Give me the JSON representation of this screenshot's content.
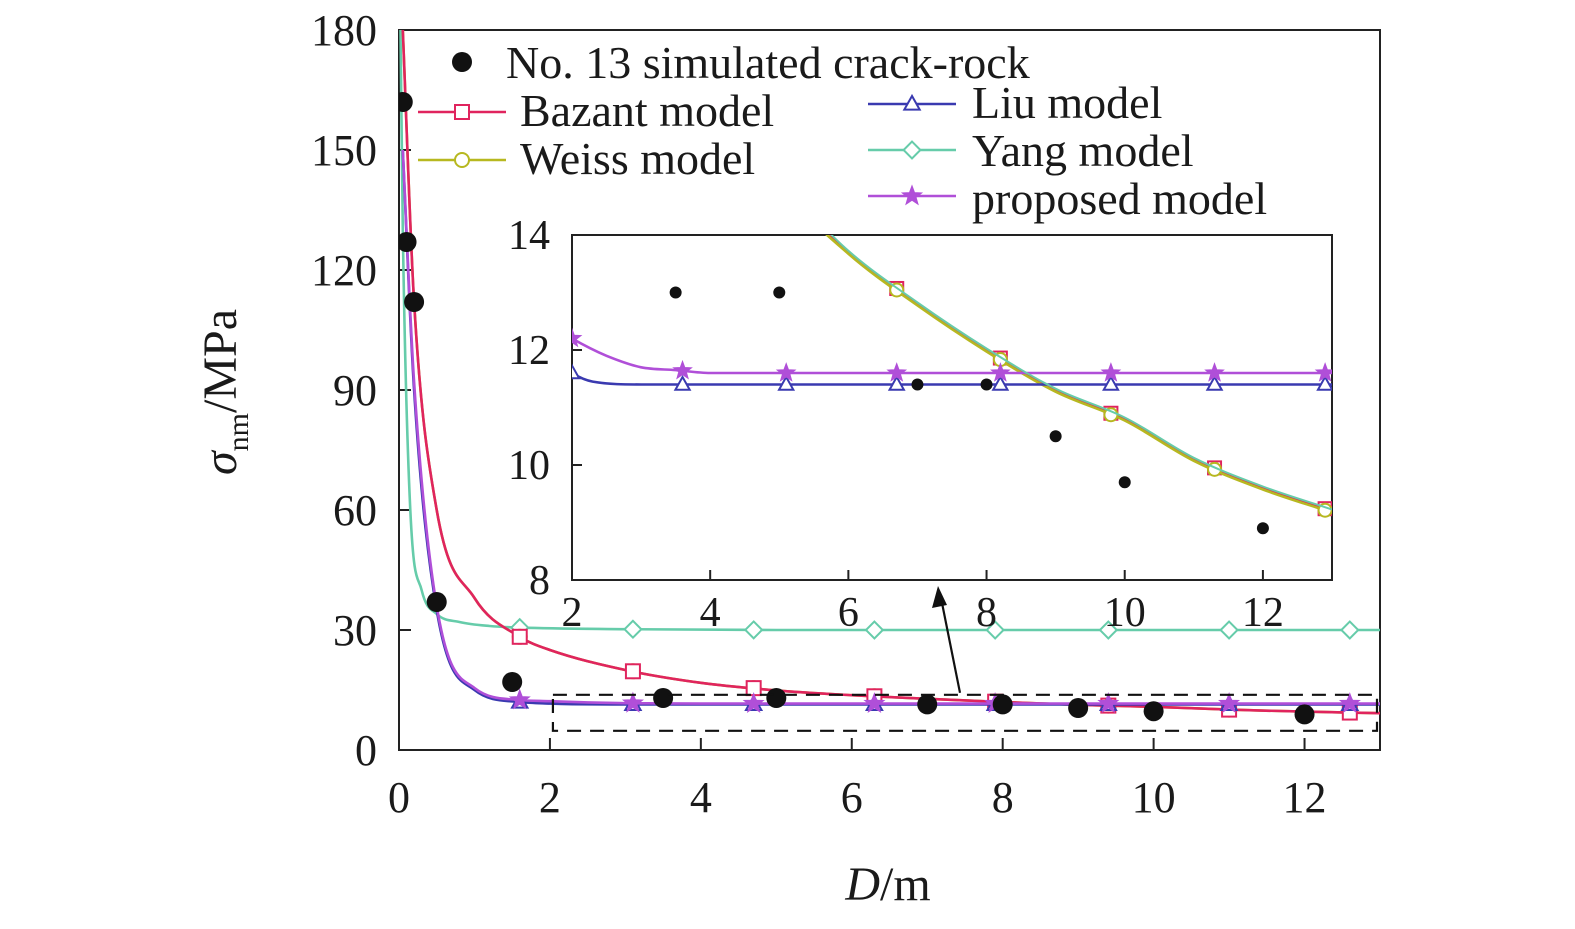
{
  "chart_data": {
    "type": "line",
    "title": "",
    "xlabel": {
      "italic": "D",
      "rest": "/m"
    },
    "ylabel": {
      "symbol": "σ",
      "subscript": "nm",
      "rest": "/MPa"
    },
    "xlim": [
      0,
      13
    ],
    "ylim": [
      0,
      180
    ],
    "x_ticks": [
      "0",
      "2",
      "4",
      "6",
      "8",
      "10",
      "12"
    ],
    "y_ticks": [
      "0",
      "30",
      "60",
      "90",
      "120",
      "150",
      "180"
    ],
    "legend": [
      {
        "label": "No. 13 simulated crack-rock",
        "marker": "dot",
        "color": "#111111"
      },
      {
        "label": "Bazant model",
        "marker": "square",
        "color": "#e0245e"
      },
      {
        "label": "Weiss model",
        "marker": "circle",
        "color": "#b7b820"
      },
      {
        "label": "Liu model",
        "marker": "triangle",
        "color": "#3a3ab0"
      },
      {
        "label": "Yang model",
        "marker": "diamond",
        "color": "#66ccaa"
      },
      {
        "label": "proposed model",
        "marker": "star",
        "color": "#b04fd8"
      }
    ],
    "scatter_points": [
      [
        0.05,
        162
      ],
      [
        0.1,
        127
      ],
      [
        0.2,
        112
      ],
      [
        0.5,
        37
      ],
      [
        1.5,
        17
      ],
      [
        3.5,
        13
      ],
      [
        5,
        13
      ],
      [
        7,
        11.4
      ],
      [
        8,
        11.4
      ],
      [
        9,
        10.5
      ],
      [
        10,
        9.7
      ],
      [
        12,
        8.9
      ]
    ],
    "series": [
      {
        "name": "Bazant model",
        "color": "#e0245e",
        "marker": "square",
        "x": [
          0.05,
          0.2,
          0.5,
          1,
          1.6,
          2,
          3,
          4,
          5,
          6,
          7,
          8,
          9,
          10,
          11,
          12,
          13
        ],
        "y": [
          180,
          112,
          60,
          38,
          28.3,
          25,
          20,
          16.8,
          14.9,
          13.7,
          12.8,
          12,
          11.3,
          10.8,
          10.1,
          9.6,
          9.2
        ]
      },
      {
        "name": "Weiss model",
        "color": "#b7b820",
        "marker": "circle",
        "x": [
          0.05,
          0.2,
          0.5,
          1,
          1.6,
          2,
          3,
          4,
          5,
          6,
          7,
          8,
          9,
          10,
          11,
          12,
          13
        ],
        "y": [
          180,
          112,
          60,
          38,
          28.3,
          25,
          20,
          16.8,
          14.9,
          13.7,
          12.8,
          12,
          11.3,
          10.8,
          10.1,
          9.6,
          9.2
        ]
      },
      {
        "name": "Liu model",
        "color": "#3a3ab0",
        "marker": "triangle",
        "x": [
          0.05,
          0.2,
          0.5,
          1,
          1.6,
          2,
          2.3,
          3,
          4,
          6,
          8,
          10,
          12,
          13
        ],
        "y": [
          150,
          90,
          35,
          15,
          12,
          11.6,
          11.45,
          11.4,
          11.4,
          11.4,
          11.4,
          11.4,
          11.4,
          11.4
        ]
      },
      {
        "name": "Yang model",
        "color": "#66ccaa",
        "marker": "diamond",
        "x": [
          0.02,
          0.05,
          0.15,
          0.3,
          0.5,
          0.8,
          1.2,
          1.6,
          3,
          5,
          7,
          9,
          11,
          13
        ],
        "y": [
          180,
          130,
          60,
          40,
          34,
          32,
          31,
          30.6,
          30.2,
          30,
          30,
          30,
          30,
          30
        ]
      },
      {
        "name": "proposed model",
        "color": "#b04fd8",
        "marker": "star",
        "x": [
          0.05,
          0.2,
          0.5,
          1,
          1.6,
          2,
          2.5,
          3,
          3.5,
          4,
          6,
          8,
          10,
          12,
          13
        ],
        "y": [
          150,
          92,
          36,
          15.5,
          12.5,
          12.2,
          11.9,
          11.7,
          11.65,
          11.6,
          11.6,
          11.6,
          11.6,
          11.6,
          11.6
        ]
      }
    ],
    "inset": {
      "xlim": [
        2,
        13
      ],
      "ylim": [
        8,
        14
      ],
      "x_ticks": [
        "2",
        "4",
        "6",
        "8",
        "10",
        "12"
      ],
      "y_ticks": [
        "8",
        "10",
        "12",
        "14"
      ],
      "zoom_box": {
        "x": [
          2,
          13
        ],
        "y": [
          4.8,
          13.8
        ]
      }
    }
  }
}
